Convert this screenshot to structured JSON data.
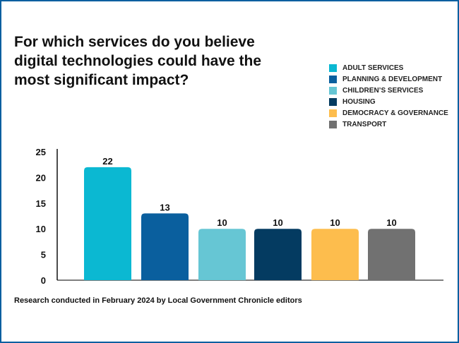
{
  "chart_data": {
    "type": "bar",
    "title": "For which services do you believe digital technologies could have the most significant impact?",
    "categories": [
      "ADULT SERVICES",
      "PLANNING & DEVELOPMENT",
      "CHILDREN’S SERVICES",
      "HOUSING",
      "DEMOCRACY & GOVERNANCE",
      "TRANSPORT"
    ],
    "values": [
      22,
      13,
      10,
      10,
      10,
      10
    ],
    "colors": [
      "#0bb8d2",
      "#0a5f9e",
      "#66c6d4",
      "#043b61",
      "#fdbd4d",
      "#717171"
    ],
    "ylim": [
      0,
      25
    ],
    "yticks": [
      0,
      5,
      10,
      15,
      20,
      25
    ],
    "grid": false,
    "legend_position": "top-right",
    "xlabel": "",
    "ylabel": ""
  },
  "footer": "Research conducted in February 2024 by Local Government Chronicle editors",
  "frame_color": "#0a5fa0"
}
